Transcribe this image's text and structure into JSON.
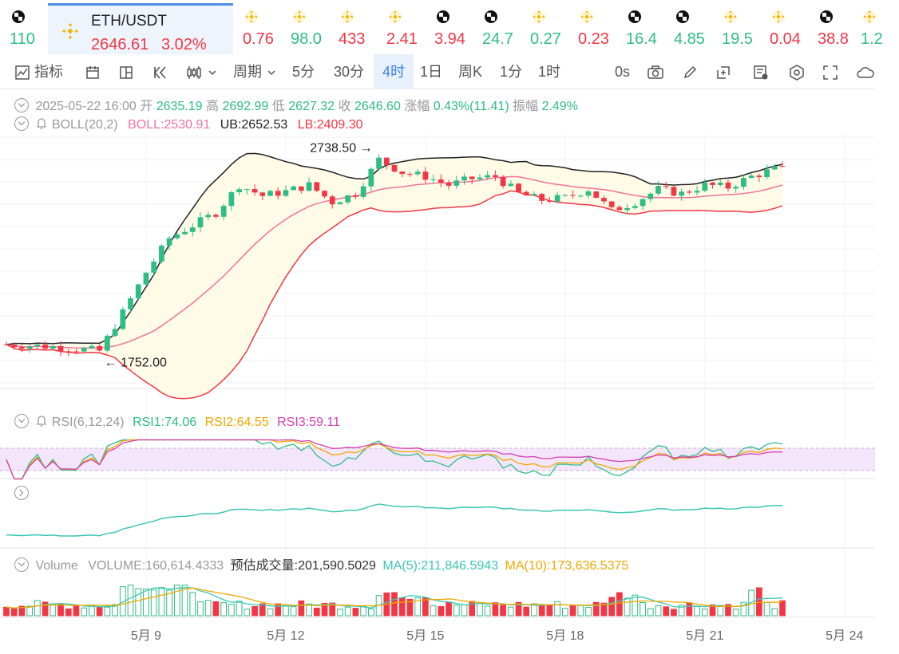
{
  "ticker": {
    "items": [
      {
        "icon": "checkered-coin-icon",
        "value": "110",
        "dir": "up"
      },
      {
        "icon": "bnb-coin-icon",
        "value": "0.76",
        "dir": "down"
      },
      {
        "icon": "bnb-coin-icon",
        "value": "98.0",
        "dir": "up"
      },
      {
        "icon": "bnb-coin-icon",
        "value": "433",
        "dir": "down"
      },
      {
        "icon": "bnb-coin-icon",
        "value": "2.41",
        "dir": "down"
      },
      {
        "icon": "checkered-coin-icon",
        "value": "3.94",
        "dir": "down"
      },
      {
        "icon": "checkered-coin-icon",
        "value": "24.7",
        "dir": "up"
      },
      {
        "icon": "bnb-coin-icon",
        "value": "0.27",
        "dir": "up"
      },
      {
        "icon": "bnb-coin-icon",
        "value": "0.23",
        "dir": "down"
      },
      {
        "icon": "checkered-coin-icon",
        "value": "16.4",
        "dir": "up"
      },
      {
        "icon": "checkered-coin-icon",
        "value": "4.85",
        "dir": "up"
      },
      {
        "icon": "bnb-coin-icon",
        "value": "19.5",
        "dir": "up"
      },
      {
        "icon": "bnb-coin-icon",
        "value": "0.04",
        "dir": "down"
      },
      {
        "icon": "checkered-coin-icon",
        "value": "38.8",
        "dir": "down"
      },
      {
        "icon": "bnb-coin-icon",
        "value": "1.2",
        "dir": "up"
      }
    ],
    "main": {
      "pair": "ETH/USDT",
      "price": "2646.61",
      "change": "3.02%"
    }
  },
  "toolbar": {
    "indicators_label": "指标",
    "period_label": "周期",
    "intervals": [
      "5分",
      "30分",
      "4时",
      "1日",
      "周K",
      "1分",
      "1时"
    ],
    "active_interval": "4时",
    "countdown": "0s"
  },
  "ohlc": {
    "date": "2025-05-22 16:00",
    "open_label": "开",
    "open": "2635.19",
    "high_label": "高",
    "high": "2692.99",
    "low_label": "低",
    "low": "2627.32",
    "close_label": "收",
    "close": "2646.60",
    "change_label": "涨幅",
    "change": "0.43%(11.41)",
    "amplitude_label": "振幅",
    "amplitude": "2.49%"
  },
  "boll": {
    "name": "BOLL(20,2)",
    "mid": "BOLL:2530.91",
    "ub": "UB:2652.53",
    "lb": "LB:2409.30"
  },
  "rsi": {
    "name": "RSI(6,12,24)",
    "rsi1": "RSI1:74.06",
    "rsi2": "RSI2:64.55",
    "rsi3": "RSI3:59.11"
  },
  "volume_legend": {
    "name": "Volume",
    "volume": "VOLUME:160,614.4333",
    "estimate": "预估成交量:201,590.5029",
    "ma5": "MA(5):211,846.5943",
    "ma10": "MA(10):173,636.5375"
  },
  "colors": {
    "up": "#2ebd85",
    "down": "#f23645",
    "ub": "#222222",
    "mid": "#f0729b",
    "lb": "#f23645",
    "band": "#fffbe6",
    "rsi1": "#2ebd85",
    "rsi2": "#f0a800",
    "rsi3": "#d63fb0",
    "rsi_band": "#f3e6fb",
    "obv": "#3bc8b4",
    "ma5": "#3bc8b4",
    "ma10": "#f0a800"
  },
  "chart_data": {
    "type": "candlestick",
    "interval": "4h",
    "x_tick_labels": [
      "5月 9",
      "5月 12",
      "5月 15",
      "5月 18",
      "5月 21",
      "5月 24"
    ],
    "x_ticks": [
      "2025-05-09",
      "2025-05-12",
      "2025-05-15",
      "2025-05-18",
      "2025-05-21",
      "2025-05-24"
    ],
    "price_range": [
      1600,
      2800
    ],
    "annotations": [
      {
        "text": "2738.50",
        "value": 2738.5,
        "kind": "high"
      },
      {
        "text": "1752.00",
        "value": 1752.0,
        "kind": "low"
      }
    ],
    "series": [
      {
        "name": "ETH/USDT",
        "kind": "ohlc_close_path",
        "points": [
          [
            "2025-05-06",
            1810
          ],
          [
            "2025-05-07",
            1800
          ],
          [
            "2025-05-08",
            1780
          ],
          [
            "2025-05-08 12:00",
            1960
          ],
          [
            "2025-05-09",
            2150
          ],
          [
            "2025-05-09 12:00",
            2310
          ],
          [
            "2025-05-10",
            2370
          ],
          [
            "2025-05-10 12:00",
            2430
          ],
          [
            "2025-05-11",
            2560
          ],
          [
            "2025-05-11 12:00",
            2510
          ],
          [
            "2025-05-12",
            2530
          ],
          [
            "2025-05-12 12:00",
            2560
          ],
          [
            "2025-05-13",
            2480
          ],
          [
            "2025-05-13 12:00",
            2520
          ],
          [
            "2025-05-14",
            2680
          ],
          [
            "2025-05-14 12:00",
            2620
          ],
          [
            "2025-05-15",
            2600
          ],
          [
            "2025-05-15 12:00",
            2560
          ],
          [
            "2025-05-16",
            2590
          ],
          [
            "2025-05-16 12:00",
            2600
          ],
          [
            "2025-05-17",
            2520
          ],
          [
            "2025-05-17 12:00",
            2490
          ],
          [
            "2025-05-18",
            2500
          ],
          [
            "2025-05-18 12:00",
            2540
          ],
          [
            "2025-05-19",
            2440
          ],
          [
            "2025-05-19 12:00",
            2480
          ],
          [
            "2025-05-20",
            2540
          ],
          [
            "2025-05-20 12:00",
            2520
          ],
          [
            "2025-05-21",
            2560
          ],
          [
            "2025-05-21 12:00",
            2550
          ],
          [
            "2025-05-22",
            2600
          ],
          [
            "2025-05-22 16:00",
            2646.6
          ]
        ]
      }
    ],
    "rsi_reference": [
      30,
      70
    ],
    "volume_peak_label": "VOLUME"
  }
}
